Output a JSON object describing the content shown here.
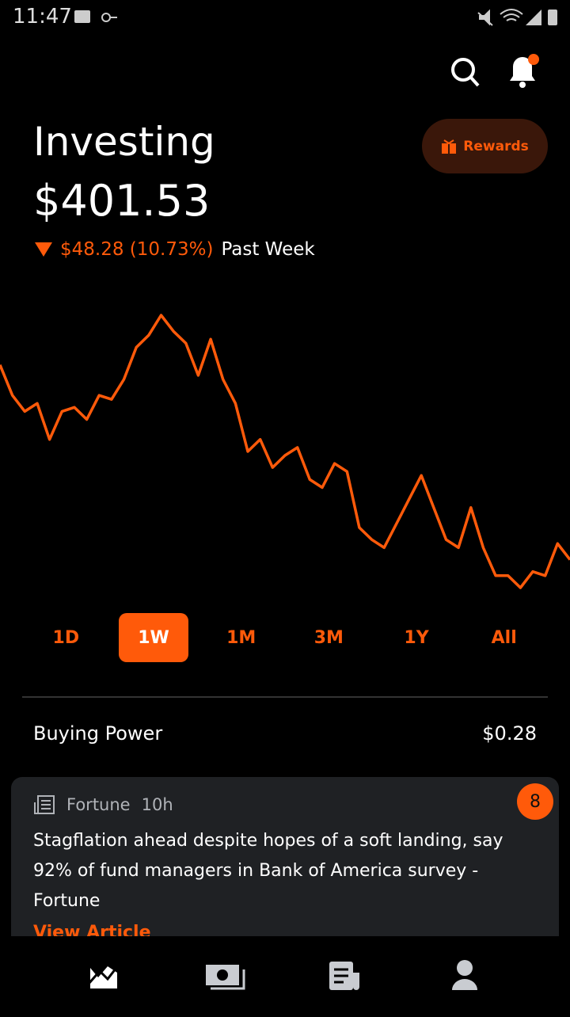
{
  "status_bar": {
    "time": "11:47"
  },
  "header": {
    "title": "Investing",
    "value": "$401.53",
    "change": "$48.28 (10.73%)",
    "period": "Past Week",
    "rewards": "Rewards"
  },
  "chart": {
    "type": "line",
    "color": "#ff5a0a",
    "values": [
      449.81,
      442.26,
      438.29,
      440.27,
      431.33,
      438.29,
      439.28,
      436.3,
      442.26,
      441.27,
      446.23,
      454.18,
      457.16,
      462.13,
      458.16,
      455.17,
      447.23,
      456.17,
      446.23,
      440.27,
      428.35,
      431.33,
      424.38,
      427.36,
      429.34,
      421.4,
      419.41,
      425.37,
      423.38,
      409.47,
      406.49,
      404.51,
      410.47,
      416.43,
      422.39,
      414.44,
      406.49,
      404.51,
      414.44,
      404.51,
      397.55,
      397.55,
      394.57,
      398.55,
      397.55,
      405.5,
      401.53
    ]
  },
  "ranges": {
    "items": [
      "1D",
      "1W",
      "1M",
      "3M",
      "1Y",
      "All"
    ],
    "selected": "1W"
  },
  "buying_power": {
    "label": "Buying Power",
    "value": "$0.28"
  },
  "news": {
    "source": "Fortune",
    "age": "10h",
    "badge": "8",
    "headline": "Stagflation ahead despite hopes of a soft landing, say 92% of fund managers in Bank of America survey - Fortune",
    "link": "View Article"
  }
}
